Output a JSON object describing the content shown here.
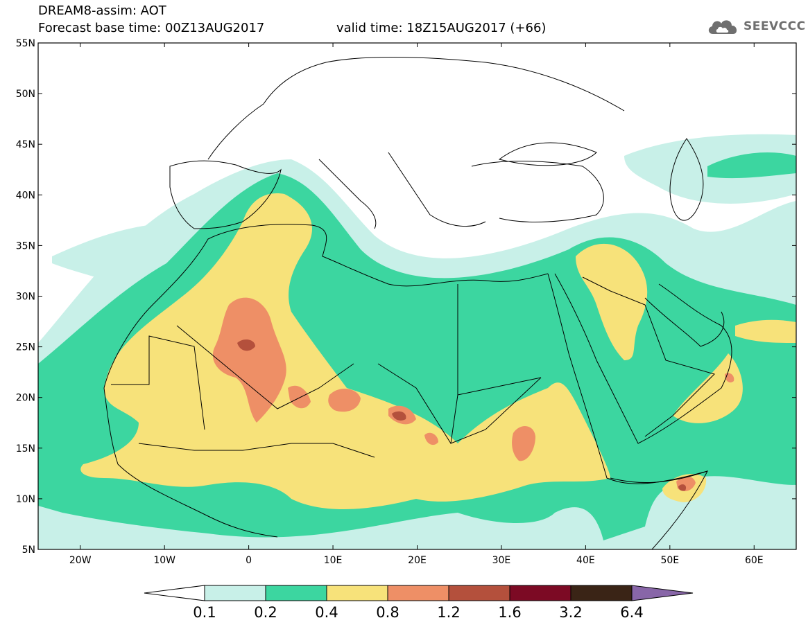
{
  "header": {
    "line1": "DREAM8-assim: AOT",
    "line2": "Forecast base time: 00Z13AUG2017",
    "valid": "valid time: 18Z15AUG2017 (+66)",
    "logo_text": "SEEVCCC",
    "logo_icon": "cloud-icon"
  },
  "map": {
    "lat_labels": [
      "55N",
      "50N",
      "45N",
      "40N",
      "35N",
      "30N",
      "25N",
      "20N",
      "15N",
      "10N",
      "5N"
    ],
    "lon_labels": [
      "20W",
      "10W",
      "0",
      "10E",
      "20E",
      "30E",
      "40E",
      "50E",
      "60E"
    ],
    "lat_values": [
      55,
      50,
      45,
      40,
      35,
      30,
      25,
      20,
      15,
      10,
      5
    ],
    "lon_values": [
      -20,
      -10,
      0,
      10,
      20,
      30,
      40,
      50,
      60
    ],
    "lon_range": [
      -25,
      65
    ],
    "lat_range": [
      5,
      55
    ],
    "variable": "AOT"
  },
  "colorbar": {
    "ticks": [
      "0.1",
      "0.2",
      "0.4",
      "0.8",
      "1.2",
      "1.6",
      "3.2",
      "6.4"
    ],
    "colors": [
      "#ffffff",
      "#c8f0e8",
      "#3cd6a0",
      "#f7e27a",
      "#ee8f66",
      "#b4503c",
      "#7c0a24",
      "#3a2416",
      "#8866a8"
    ]
  }
}
